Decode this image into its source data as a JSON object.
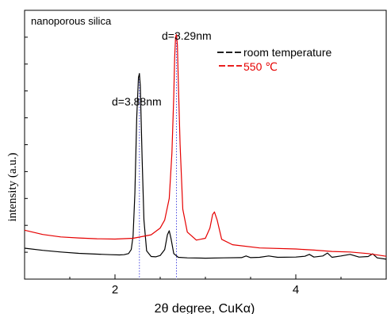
{
  "chart_data": {
    "type": "line",
    "title": "nanoporous silica",
    "xlabel": "2θ degree, CuKα)",
    "ylabel": "intensity (a.u.)",
    "xlim": [
      1.0,
      5.0
    ],
    "ylim": [
      0,
      100
    ],
    "x_ticks": [
      2,
      4
    ],
    "x_tick_labels": [
      "2",
      "4"
    ],
    "grid": false,
    "legend_position": "top-right",
    "series": [
      {
        "name": "room temperature",
        "color": "#000000",
        "points": [
          [
            1.0,
            11.5
          ],
          [
            1.2,
            10.7
          ],
          [
            1.4,
            10.1
          ],
          [
            1.6,
            9.6
          ],
          [
            1.8,
            9.3
          ],
          [
            1.95,
            9.1
          ],
          [
            2.05,
            9.0
          ],
          [
            2.1,
            9.1
          ],
          [
            2.15,
            9.5
          ],
          [
            2.18,
            11
          ],
          [
            2.2,
            16
          ],
          [
            2.22,
            32
          ],
          [
            2.24,
            60
          ],
          [
            2.26,
            75
          ],
          [
            2.27,
            76.5
          ],
          [
            2.28,
            72
          ],
          [
            2.3,
            45
          ],
          [
            2.32,
            22
          ],
          [
            2.35,
            10.5
          ],
          [
            2.4,
            8.4
          ],
          [
            2.45,
            8.3
          ],
          [
            2.5,
            8.8
          ],
          [
            2.55,
            11
          ],
          [
            2.58,
            16.5
          ],
          [
            2.6,
            18
          ],
          [
            2.62,
            15
          ],
          [
            2.65,
            9.5
          ],
          [
            2.7,
            8.1
          ],
          [
            2.8,
            7.9
          ],
          [
            3.0,
            7.8
          ],
          [
            3.2,
            7.9
          ],
          [
            3.4,
            8.0
          ],
          [
            3.45,
            8.6
          ],
          [
            3.5,
            8.0
          ],
          [
            3.6,
            8.1
          ],
          [
            3.7,
            8.6
          ],
          [
            3.8,
            8.1
          ],
          [
            4.0,
            8.2
          ],
          [
            4.1,
            8.5
          ],
          [
            4.15,
            9.2
          ],
          [
            4.2,
            8.2
          ],
          [
            4.3,
            8.6
          ],
          [
            4.35,
            9.7
          ],
          [
            4.4,
            8.1
          ],
          [
            4.5,
            8.6
          ],
          [
            4.6,
            9.2
          ],
          [
            4.7,
            8.2
          ],
          [
            4.8,
            8.4
          ],
          [
            4.85,
            9.4
          ],
          [
            4.9,
            7.9
          ],
          [
            5.0,
            7.4
          ]
        ]
      },
      {
        "name": "550 ℃",
        "color": "#e60000",
        "points": [
          [
            1.0,
            18.2
          ],
          [
            1.2,
            16.6
          ],
          [
            1.4,
            15.7
          ],
          [
            1.6,
            15.3
          ],
          [
            1.8,
            15.0
          ],
          [
            2.0,
            14.9
          ],
          [
            2.2,
            15.2
          ],
          [
            2.4,
            16.5
          ],
          [
            2.5,
            19
          ],
          [
            2.55,
            22
          ],
          [
            2.6,
            30
          ],
          [
            2.63,
            47
          ],
          [
            2.65,
            68
          ],
          [
            2.66,
            82
          ],
          [
            2.67,
            90
          ],
          [
            2.68,
            91
          ],
          [
            2.69,
            87
          ],
          [
            2.7,
            74
          ],
          [
            2.72,
            50
          ],
          [
            2.75,
            26
          ],
          [
            2.8,
            17.5
          ],
          [
            2.9,
            14.5
          ],
          [
            3.0,
            15.2
          ],
          [
            3.05,
            19
          ],
          [
            3.08,
            24
          ],
          [
            3.1,
            25
          ],
          [
            3.13,
            22
          ],
          [
            3.18,
            14.8
          ],
          [
            3.3,
            12.8
          ],
          [
            3.6,
            11.6
          ],
          [
            4.0,
            11.2
          ],
          [
            4.2,
            10.8
          ],
          [
            4.4,
            10.3
          ],
          [
            4.6,
            10.1
          ],
          [
            4.8,
            9.5
          ],
          [
            5.0,
            8.5
          ]
        ]
      }
    ],
    "annotations": [
      {
        "text": "d=3.88nm",
        "x": 2.27,
        "y": 76.5,
        "color": "#000000"
      },
      {
        "text": "d=3.29nm",
        "x": 2.68,
        "y": 91,
        "color": "#000000"
      }
    ],
    "reference_lines": [
      {
        "x": 2.27,
        "color": "#4a4ae0",
        "style": "dotted"
      },
      {
        "x": 2.68,
        "color": "#4a4ae0",
        "style": "dotted"
      }
    ]
  }
}
